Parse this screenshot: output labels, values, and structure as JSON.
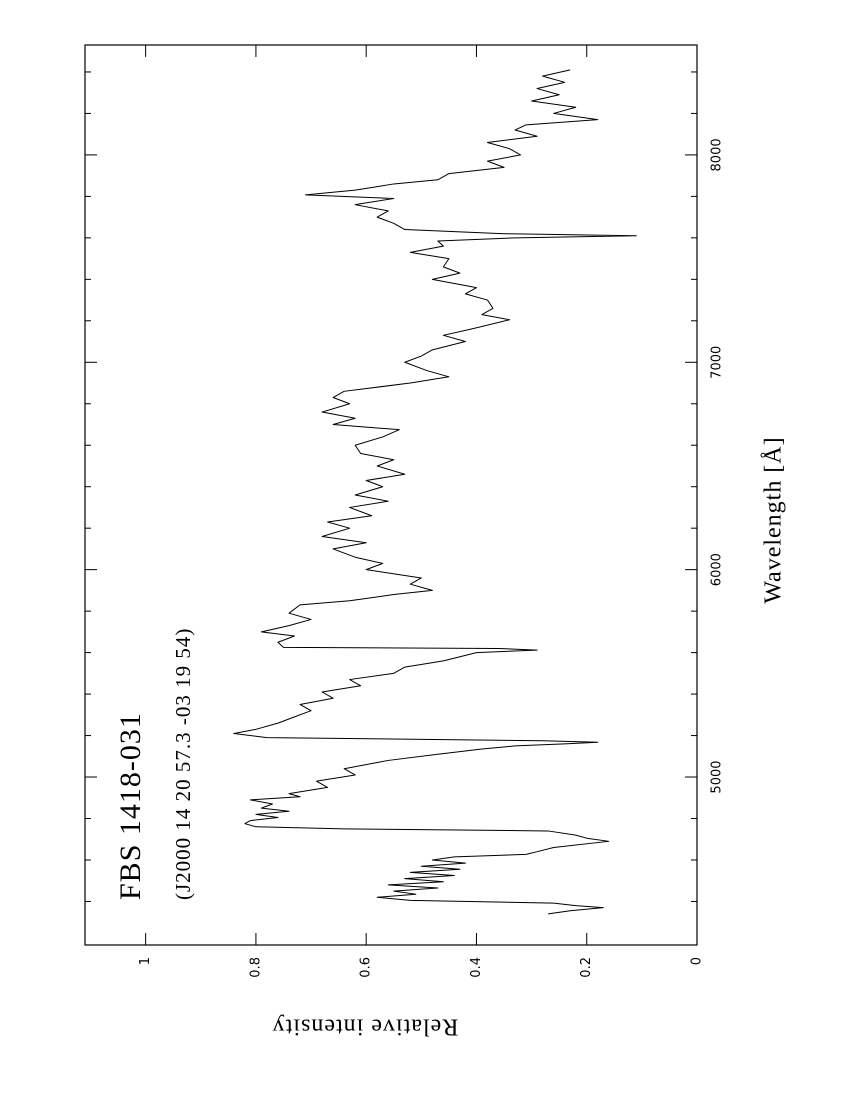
{
  "chart_data": {
    "type": "line",
    "title": "FBS 1418-031",
    "subtitle": "(J2000 14 20 57.3 -03 19 54)",
    "x_label": "Wavelength  [Å]",
    "y_label": "Relative intensity",
    "xlim": [
      4190,
      8530
    ],
    "ylim": [
      0,
      1.11
    ],
    "xticks": [
      5000,
      6000,
      7000,
      8000
    ],
    "xminorticks": [
      4400,
      4600,
      4800,
      5200,
      5400,
      5600,
      5800,
      6200,
      6400,
      6600,
      6800,
      7200,
      7400,
      7600,
      7800,
      8200,
      8400
    ],
    "yticks": [
      0,
      0.2,
      0.4,
      0.6,
      0.8,
      1
    ],
    "color": "#000000",
    "x": [
      4340,
      4355,
      4370,
      4380,
      4392,
      4405,
      4420,
      4435,
      4450,
      4465,
      4480,
      4495,
      4510,
      4525,
      4540,
      4555,
      4570,
      4585,
      4600,
      4615,
      4627,
      4640,
      4660,
      4690,
      4705,
      4720,
      4740,
      4750,
      4760,
      4775,
      4790,
      4805,
      4820,
      4835,
      4850,
      4870,
      4890,
      4905,
      4920,
      4950,
      4980,
      5010,
      5040,
      5080,
      5110,
      5135,
      5150,
      5160,
      5168,
      5175,
      5190,
      5210,
      5230,
      5260,
      5290,
      5320,
      5350,
      5380,
      5410,
      5440,
      5470,
      5500,
      5530,
      5560,
      5580,
      5600,
      5612,
      5620,
      5625,
      5650,
      5680,
      5700,
      5730,
      5760,
      5790,
      5830,
      5850,
      5880,
      5900,
      5930,
      5960,
      6000,
      6030,
      6060,
      6100,
      6130,
      6160,
      6200,
      6230,
      6260,
      6300,
      6330,
      6360,
      6400,
      6430,
      6460,
      6500,
      6530,
      6560,
      6600,
      6640,
      6675,
      6700,
      6730,
      6760,
      6800,
      6830,
      6860,
      6900,
      6930,
      6960,
      7000,
      7030,
      7060,
      7100,
      7130,
      7160,
      7205,
      7230,
      7260,
      7300,
      7330,
      7360,
      7400,
      7430,
      7460,
      7500,
      7530,
      7560,
      7585,
      7600,
      7610,
      7620,
      7640,
      7670,
      7700,
      7730,
      7760,
      7790,
      7807,
      7830,
      7860,
      7880,
      7910,
      7940,
      7970,
      8000,
      8030,
      8060,
      8090,
      8120,
      8145,
      8170,
      8200,
      8230,
      8260,
      8290,
      8320,
      8350,
      8380,
      8410
    ],
    "values": [
      0.27,
      0.23,
      0.17,
      0.22,
      0.26,
      0.52,
      0.58,
      0.51,
      0.55,
      0.47,
      0.56,
      0.46,
      0.53,
      0.44,
      0.52,
      0.43,
      0.5,
      0.42,
      0.48,
      0.44,
      0.31,
      0.29,
      0.26,
      0.16,
      0.2,
      0.22,
      0.27,
      0.64,
      0.8,
      0.82,
      0.81,
      0.76,
      0.8,
      0.74,
      0.79,
      0.77,
      0.81,
      0.72,
      0.74,
      0.67,
      0.69,
      0.62,
      0.64,
      0.56,
      0.47,
      0.39,
      0.33,
      0.24,
      0.18,
      0.28,
      0.78,
      0.84,
      0.8,
      0.76,
      0.73,
      0.7,
      0.72,
      0.66,
      0.68,
      0.61,
      0.63,
      0.55,
      0.53,
      0.46,
      0.43,
      0.4,
      0.29,
      0.36,
      0.75,
      0.76,
      0.73,
      0.79,
      0.74,
      0.7,
      0.74,
      0.72,
      0.63,
      0.55,
      0.48,
      0.52,
      0.5,
      0.6,
      0.57,
      0.62,
      0.66,
      0.6,
      0.68,
      0.63,
      0.67,
      0.59,
      0.63,
      0.56,
      0.62,
      0.57,
      0.6,
      0.53,
      0.58,
      0.55,
      0.61,
      0.62,
      0.57,
      0.54,
      0.66,
      0.62,
      0.68,
      0.63,
      0.66,
      0.64,
      0.52,
      0.45,
      0.49,
      0.53,
      0.5,
      0.48,
      0.42,
      0.46,
      0.41,
      0.34,
      0.39,
      0.37,
      0.38,
      0.42,
      0.4,
      0.48,
      0.43,
      0.46,
      0.45,
      0.52,
      0.46,
      0.47,
      0.33,
      0.11,
      0.35,
      0.53,
      0.55,
      0.58,
      0.56,
      0.62,
      0.55,
      0.71,
      0.62,
      0.55,
      0.47,
      0.45,
      0.35,
      0.38,
      0.32,
      0.34,
      0.38,
      0.29,
      0.33,
      0.31,
      0.18,
      0.26,
      0.22,
      0.3,
      0.25,
      0.29,
      0.24,
      0.28,
      0.23
    ]
  }
}
